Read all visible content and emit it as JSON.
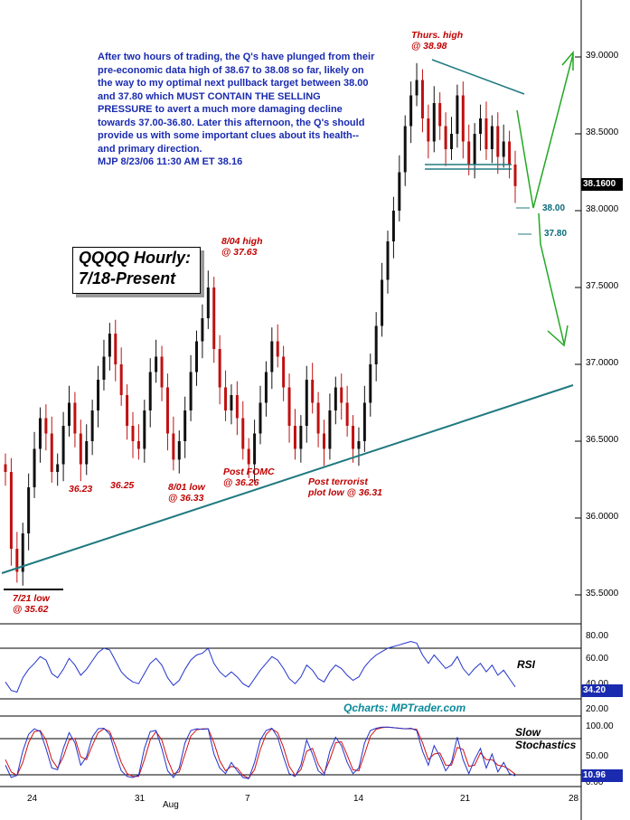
{
  "chart_data": {
    "type": "candlestick",
    "symbol": "QQQQ",
    "title": "QQQQ Hourly:\n7/18-Present",
    "credit": "Qcharts: MPTrader.com",
    "commentary": "After two hours of trading, the Q's have plunged from their pre-economic data high of 38.67 to 38.08 so far, likely on the way to my optimal next pullback target between 38.00 and 37.80 which MUST CONTAIN THE SELLING PRESSURE to avert a much more damaging decline towards 37.00-36.80. Later this afternoon, the Q's should provide us with some important clues about its health-- and primary direction.\nMJP  8/23/06  11:30 AM ET  38.16",
    "y_ticks": [
      "39.0000",
      "38.5000",
      "38.0000",
      "37.5000",
      "37.0000",
      "36.5000",
      "36.0000",
      "35.5000"
    ],
    "ylim": [
      35.45,
      39.3
    ],
    "x_ticks": [
      "24",
      "31",
      "Aug",
      "7",
      "14",
      "21",
      "28"
    ],
    "last_price_label": "38.1600",
    "closes": [
      36.3,
      35.8,
      35.65,
      35.9,
      36.2,
      36.45,
      36.65,
      36.55,
      36.3,
      36.35,
      36.6,
      36.75,
      36.55,
      36.35,
      36.5,
      36.7,
      36.9,
      37.05,
      37.2,
      37.0,
      36.8,
      36.6,
      36.5,
      36.45,
      36.7,
      36.95,
      37.05,
      36.85,
      36.55,
      36.38,
      36.5,
      36.7,
      36.95,
      37.15,
      37.3,
      37.5,
      37.1,
      36.85,
      36.7,
      36.8,
      36.65,
      36.45,
      36.35,
      36.55,
      36.75,
      36.95,
      37.15,
      37.05,
      36.85,
      36.6,
      36.45,
      36.6,
      36.9,
      36.75,
      36.55,
      36.45,
      36.7,
      36.85,
      36.75,
      36.6,
      36.45,
      36.5,
      36.75,
      37.0,
      37.25,
      37.55,
      37.8,
      38.0,
      38.25,
      38.55,
      38.75,
      38.85,
      38.6,
      38.45,
      38.7,
      38.55,
      38.4,
      38.5,
      38.75,
      38.45,
      38.3,
      38.5,
      38.6,
      38.4,
      38.55,
      38.35,
      38.45,
      38.3,
      38.16
    ],
    "annotations": [
      {
        "text": "Thurs. high\n@ 38.98",
        "value": 38.98
      },
      {
        "text": "8/04 high\n@ 37.63",
        "value": 37.63
      },
      {
        "text": "7/21 low\n@ 35.62",
        "value": 35.62
      },
      {
        "text": "36.23",
        "value": 36.23
      },
      {
        "text": "36.25",
        "value": 36.25
      },
      {
        "text": "8/01 low\n@ 36.33",
        "value": 36.33
      },
      {
        "text": "Post FOMC\n@ 36.26",
        "value": 36.26
      },
      {
        "text": "Post terrorist\nplot low @ 36.31",
        "value": 36.31
      }
    ],
    "targets": [
      "38.00",
      "37.80"
    ],
    "rsi": {
      "label": "RSI",
      "y_ticks": [
        "80.00",
        "60.00",
        "40.00",
        "20.00"
      ],
      "last_label": "34.20",
      "values": [
        40,
        30,
        28,
        45,
        55,
        62,
        70,
        66,
        50,
        45,
        55,
        68,
        60,
        48,
        55,
        65,
        75,
        80,
        78,
        65,
        52,
        45,
        40,
        38,
        50,
        62,
        68,
        60,
        45,
        36,
        42,
        55,
        66,
        72,
        74,
        80,
        62,
        52,
        46,
        52,
        46,
        38,
        34,
        44,
        54,
        62,
        70,
        66,
        56,
        44,
        38,
        46,
        60,
        54,
        44,
        40,
        52,
        60,
        56,
        48,
        42,
        46,
        58,
        66,
        72,
        76,
        80,
        82,
        84,
        86,
        88,
        86,
        72,
        62,
        72,
        64,
        56,
        60,
        70,
        56,
        48,
        56,
        62,
        52,
        60,
        48,
        54,
        44,
        34
      ]
    },
    "stochastics": {
      "label": "Slow\nStochastics",
      "y_ticks": [
        "100.00",
        "50.00",
        "0.00"
      ],
      "last_label": "10.96",
      "k": [
        30,
        8,
        12,
        55,
        85,
        95,
        90,
        60,
        25,
        22,
        60,
        88,
        70,
        30,
        45,
        80,
        95,
        96,
        85,
        50,
        20,
        10,
        8,
        12,
        60,
        90,
        92,
        60,
        20,
        8,
        25,
        70,
        92,
        95,
        94,
        95,
        50,
        25,
        15,
        35,
        20,
        8,
        6,
        35,
        75,
        92,
        96,
        80,
        45,
        15,
        10,
        30,
        75,
        50,
        20,
        12,
        55,
        80,
        65,
        35,
        15,
        25,
        70,
        92,
        96,
        98,
        98,
        97,
        96,
        95,
        96,
        92,
        55,
        30,
        65,
        45,
        20,
        35,
        80,
        40,
        15,
        40,
        60,
        25,
        50,
        18,
        35,
        15,
        10.96
      ],
      "d": [
        40,
        18,
        12,
        35,
        70,
        90,
        92,
        75,
        40,
        25,
        45,
        75,
        78,
        45,
        40,
        65,
        88,
        95,
        90,
        65,
        35,
        15,
        10,
        10,
        40,
        75,
        90,
        75,
        40,
        15,
        18,
        50,
        82,
        93,
        95,
        95,
        70,
        38,
        20,
        28,
        25,
        12,
        7,
        22,
        58,
        85,
        95,
        88,
        62,
        28,
        12,
        22,
        55,
        60,
        32,
        15,
        40,
        70,
        72,
        48,
        22,
        20,
        50,
        82,
        94,
        97,
        98,
        97,
        96,
        95,
        95,
        94,
        70,
        40,
        50,
        52,
        30,
        30,
        62,
        58,
        28,
        30,
        52,
        40,
        40,
        30,
        28,
        22,
        14
      ]
    }
  }
}
